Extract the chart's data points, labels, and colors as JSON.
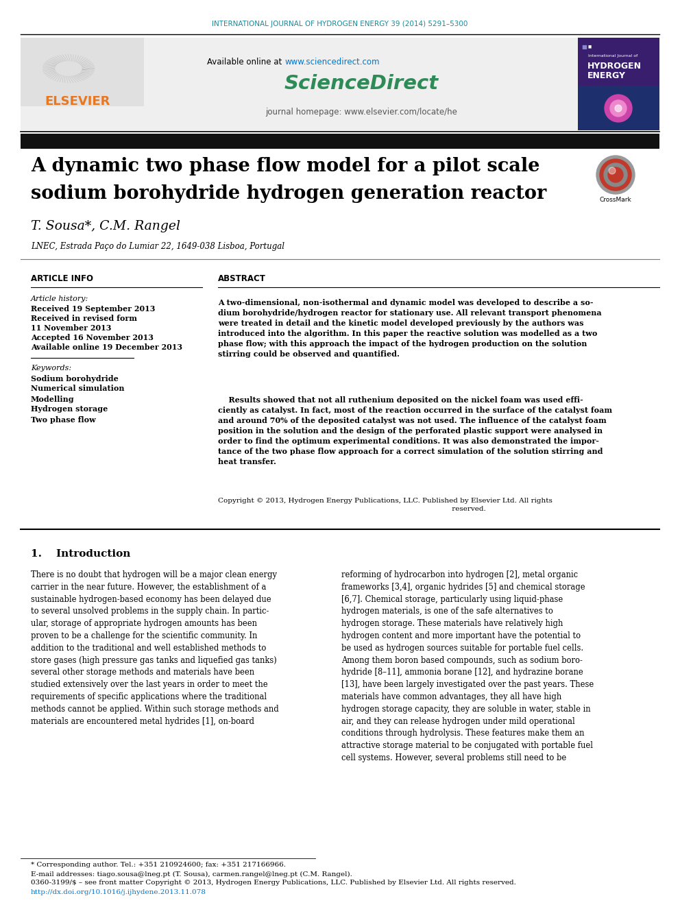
{
  "journal_header": "INTERNATIONAL JOURNAL OF HYDROGEN ENERGY 39 (2014) 5291–5300",
  "available_online_text": "Available online at",
  "sciencedirect_url": "www.sciencedirect.com",
  "sciencedirect_brand": "ScienceDirect",
  "journal_homepage": "journal homepage: www.elsevier.com/locate/he",
  "elsevier_text": "ELSEVIER",
  "title_line1": "A dynamic two phase flow model for a pilot scale",
  "title_line2": "sodium borohydride hydrogen generation reactor",
  "authors": "T. Sousa*, C.M. Rangel",
  "affiliation": "LNEC, Estrada Paço do Lumiar 22, 1649-038 Lisboa, Portugal",
  "article_info_header": "ARTICLE INFO",
  "abstract_header": "ABSTRACT",
  "article_history_label": "Article history:",
  "received1": "Received 19 September 2013",
  "received_revised": "Received in revised form",
  "received_revised2": "11 November 2013",
  "accepted": "Accepted 16 November 2013",
  "available": "Available online 19 December 2013",
  "keywords_label": "Keywords:",
  "keywords": [
    "Sodium borohydride",
    "Numerical simulation",
    "Modelling",
    "Hydrogen storage",
    "Two phase flow"
  ],
  "abstract_para1": "A two-dimensional, non-isothermal and dynamic model was developed to describe a so-\ndium borohydride/hydrogen reactor for stationary use. All relevant transport phenomena\nwere treated in detail and the kinetic model developed previously by the authors was\nintroduced into the algorithm. In this paper the reactive solution was modelled as a two\nphase flow; with this approach the impact of the hydrogen production on the solution\nstirring could be observed and quantified.",
  "abstract_para2": "    Results showed that not all ruthenium deposited on the nickel foam was used effi-\nciently as catalyst. In fact, most of the reaction occurred in the surface of the catalyst foam\nand around 70% of the deposited catalyst was not used. The influence of the catalyst foam\nposition in the solution and the design of the perforated plastic support were analysed in\norder to find the optimum experimental conditions. It was also demonstrated the impor-\ntance of the two phase flow approach for a correct simulation of the solution stirring and\nheat transfer.",
  "copyright": "Copyright © 2013, Hydrogen Energy Publications, LLC. Published by Elsevier Ltd. All rights\n                                                                                                         reserved.",
  "section1_title": "1.    Introduction",
  "intro_col1": "There is no doubt that hydrogen will be a major clean energy\ncarrier in the near future. However, the establishment of a\nsustainable hydrogen-based economy has been delayed due\nto several unsolved problems in the supply chain. In partic-\nular, storage of appropriate hydrogen amounts has been\nproven to be a challenge for the scientific community. In\naddition to the traditional and well established methods to\nstore gases (high pressure gas tanks and liquefied gas tanks)\nseveral other storage methods and materials have been\nstudied extensively over the last years in order to meet the\nrequirements of specific applications where the traditional\nmethods cannot be applied. Within such storage methods and\nmaterials are encountered metal hydrides [1], on-board",
  "intro_col2": "reforming of hydrocarbon into hydrogen [2], metal organic\nframeworks [3,4], organic hydrides [5] and chemical storage\n[6,7]. Chemical storage, particularly using liquid-phase\nhydrogen materials, is one of the safe alternatives to\nhydrogen storage. These materials have relatively high\nhydrogen content and more important have the potential to\nbe used as hydrogen sources suitable for portable fuel cells.\nAmong them boron based compounds, such as sodium boro-\nhydride [8–11], ammonia borane [12], and hydrazine borane\n[13], have been largely investigated over the past years. These\nmaterials have common advantages, they all have high\nhydrogen storage capacity, they are soluble in water, stable in\nair, and they can release hydrogen under mild operational\nconditions through hydrolysis. These features make them an\nattractive storage material to be conjugated with portable fuel\ncell systems. However, several problems still need to be",
  "footnote1": "* Corresponding author. Tel.: +351 210924600; fax: +351 217166966.",
  "footnote2": "E-mail addresses: tiago.sousa@lneg.pt (T. Sousa), carmen.rangel@lneg.pt (C.M. Rangel).",
  "footnote3": "0360-3199/$ – see front matter Copyright © 2013, Hydrogen Energy Publications, LLC. Published by Elsevier Ltd. All rights reserved.",
  "footnote4": "http://dx.doi.org/10.1016/j.ijhydene.2013.11.078",
  "elsevier_orange": "#E87722",
  "sciencedirect_green": "#2E8B57",
  "link_color": "#0077CC",
  "teal_header_color": "#1a8a9a"
}
